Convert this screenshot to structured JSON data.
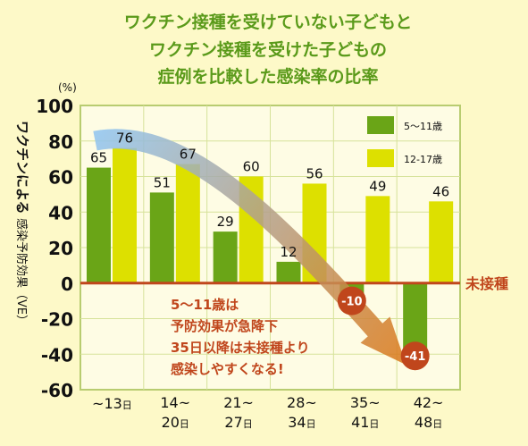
{
  "chart_data": {
    "type": "bar",
    "title_lines": [
      "ワクチン接種を受けていない子どもと",
      "ワクチン接種を受けた子どもの",
      "症例を比較した感染率の比率"
    ],
    "ylabel_main": "ワクチンによる",
    "ylabel_rest": "感染予防効果（VE）",
    "unit": "(%)",
    "ylim": [
      -60,
      100
    ],
    "yticks": [
      100,
      80,
      60,
      40,
      20,
      0,
      -20,
      -40,
      -60
    ],
    "grid": true,
    "legend_position": "top-right",
    "categories": [
      [
        "~13",
        "日"
      ],
      [
        "14~",
        "20日"
      ],
      [
        "21~",
        "27日"
      ],
      [
        "28~",
        "34日"
      ],
      [
        "35~",
        "41日"
      ],
      [
        "42~",
        "48日"
      ]
    ],
    "series": [
      {
        "name": "5～11歳",
        "color": "#6aa517",
        "values": [
          65,
          51,
          29,
          12,
          -10,
          -41
        ]
      },
      {
        "name": "12-17歳",
        "color": "#dde000",
        "values": [
          76,
          67,
          60,
          56,
          49,
          46
        ]
      }
    ],
    "baseline_label": "未接種",
    "annotation_lines": [
      "5～11歳は",
      "予防効果が急降下",
      "35日以降は未接種より",
      "感染しやすくなる!"
    ],
    "colors": {
      "title": "#5a9a1a",
      "baseline": "#c0461c",
      "annotation": "#c0461c",
      "badge": "#c0461c",
      "plot_bg": "#fefce4",
      "frame": "#b8cc70",
      "arrow_start": "#8fc3f0",
      "arrow_end": "#d9791c"
    }
  }
}
